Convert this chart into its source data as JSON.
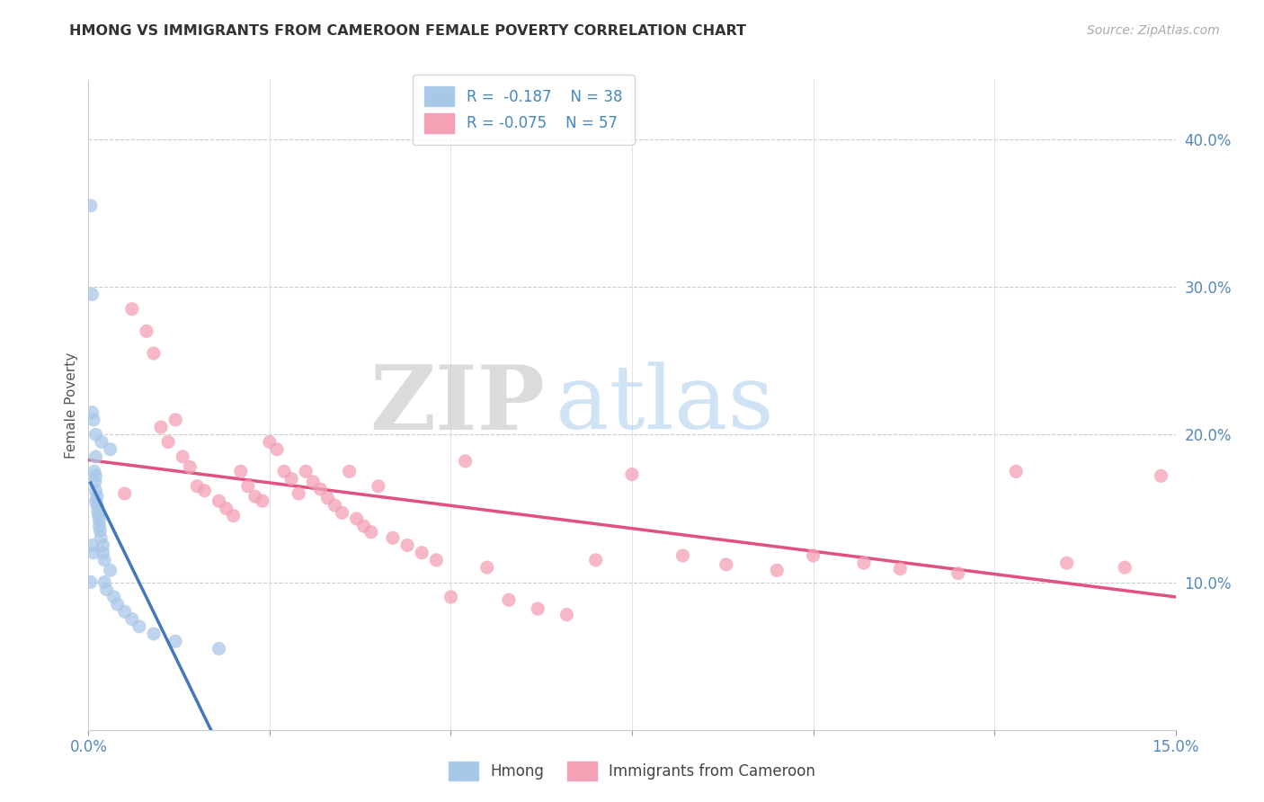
{
  "title": "HMONG VS IMMIGRANTS FROM CAMEROON FEMALE POVERTY CORRELATION CHART",
  "source": "Source: ZipAtlas.com",
  "ylabel": "Female Poverty",
  "right_yticks": [
    "10.0%",
    "20.0%",
    "30.0%",
    "40.0%"
  ],
  "right_ytick_vals": [
    0.1,
    0.2,
    0.3,
    0.4
  ],
  "xlim": [
    0.0,
    0.15
  ],
  "ylim": [
    0.0,
    0.44
  ],
  "legend_r_hmong": "R =  -0.187",
  "legend_n_hmong": "N = 38",
  "legend_r_cameroon": "R = -0.075",
  "legend_n_cameroon": "N = 57",
  "hmong_color": "#a8c8e8",
  "cameroon_color": "#f4a0b5",
  "trendline_hmong_color": "#4477bb",
  "trendline_cameroon_color": "#e05080",
  "trendline_dashed_color": "#99bbdd",
  "watermark_zip": "ZIP",
  "watermark_atlas": "atlas",
  "hmong_x": [
    0.0003,
    0.0003,
    0.0005,
    0.0005,
    0.0005,
    0.0007,
    0.0007,
    0.0008,
    0.0009,
    0.001,
    0.001,
    0.001,
    0.001,
    0.001,
    0.0012,
    0.0012,
    0.0013,
    0.0014,
    0.0015,
    0.0015,
    0.0016,
    0.0017,
    0.0018,
    0.002,
    0.002,
    0.0022,
    0.0022,
    0.0025,
    0.003,
    0.003,
    0.0035,
    0.004,
    0.005,
    0.006,
    0.007,
    0.009,
    0.012,
    0.018
  ],
  "hmong_y": [
    0.355,
    0.1,
    0.295,
    0.215,
    0.125,
    0.21,
    0.12,
    0.175,
    0.168,
    0.2,
    0.185,
    0.172,
    0.162,
    0.155,
    0.158,
    0.152,
    0.148,
    0.145,
    0.142,
    0.138,
    0.135,
    0.13,
    0.195,
    0.125,
    0.12,
    0.115,
    0.1,
    0.095,
    0.19,
    0.108,
    0.09,
    0.085,
    0.08,
    0.075,
    0.07,
    0.065,
    0.06,
    0.055
  ],
  "cameroon_x": [
    0.005,
    0.006,
    0.008,
    0.009,
    0.01,
    0.011,
    0.012,
    0.013,
    0.014,
    0.015,
    0.016,
    0.018,
    0.019,
    0.02,
    0.021,
    0.022,
    0.023,
    0.024,
    0.025,
    0.026,
    0.027,
    0.028,
    0.029,
    0.03,
    0.031,
    0.032,
    0.033,
    0.034,
    0.035,
    0.036,
    0.037,
    0.038,
    0.039,
    0.04,
    0.042,
    0.044,
    0.046,
    0.048,
    0.05,
    0.052,
    0.055,
    0.058,
    0.062,
    0.066,
    0.07,
    0.075,
    0.082,
    0.088,
    0.095,
    0.1,
    0.107,
    0.112,
    0.12,
    0.128,
    0.135,
    0.143,
    0.148
  ],
  "cameroon_y": [
    0.16,
    0.285,
    0.27,
    0.255,
    0.205,
    0.195,
    0.21,
    0.185,
    0.178,
    0.165,
    0.162,
    0.155,
    0.15,
    0.145,
    0.175,
    0.165,
    0.158,
    0.155,
    0.195,
    0.19,
    0.175,
    0.17,
    0.16,
    0.175,
    0.168,
    0.163,
    0.157,
    0.152,
    0.147,
    0.175,
    0.143,
    0.138,
    0.134,
    0.165,
    0.13,
    0.125,
    0.12,
    0.115,
    0.09,
    0.182,
    0.11,
    0.088,
    0.082,
    0.078,
    0.115,
    0.173,
    0.118,
    0.112,
    0.108,
    0.118,
    0.113,
    0.109,
    0.106,
    0.175,
    0.113,
    0.11,
    0.172
  ]
}
